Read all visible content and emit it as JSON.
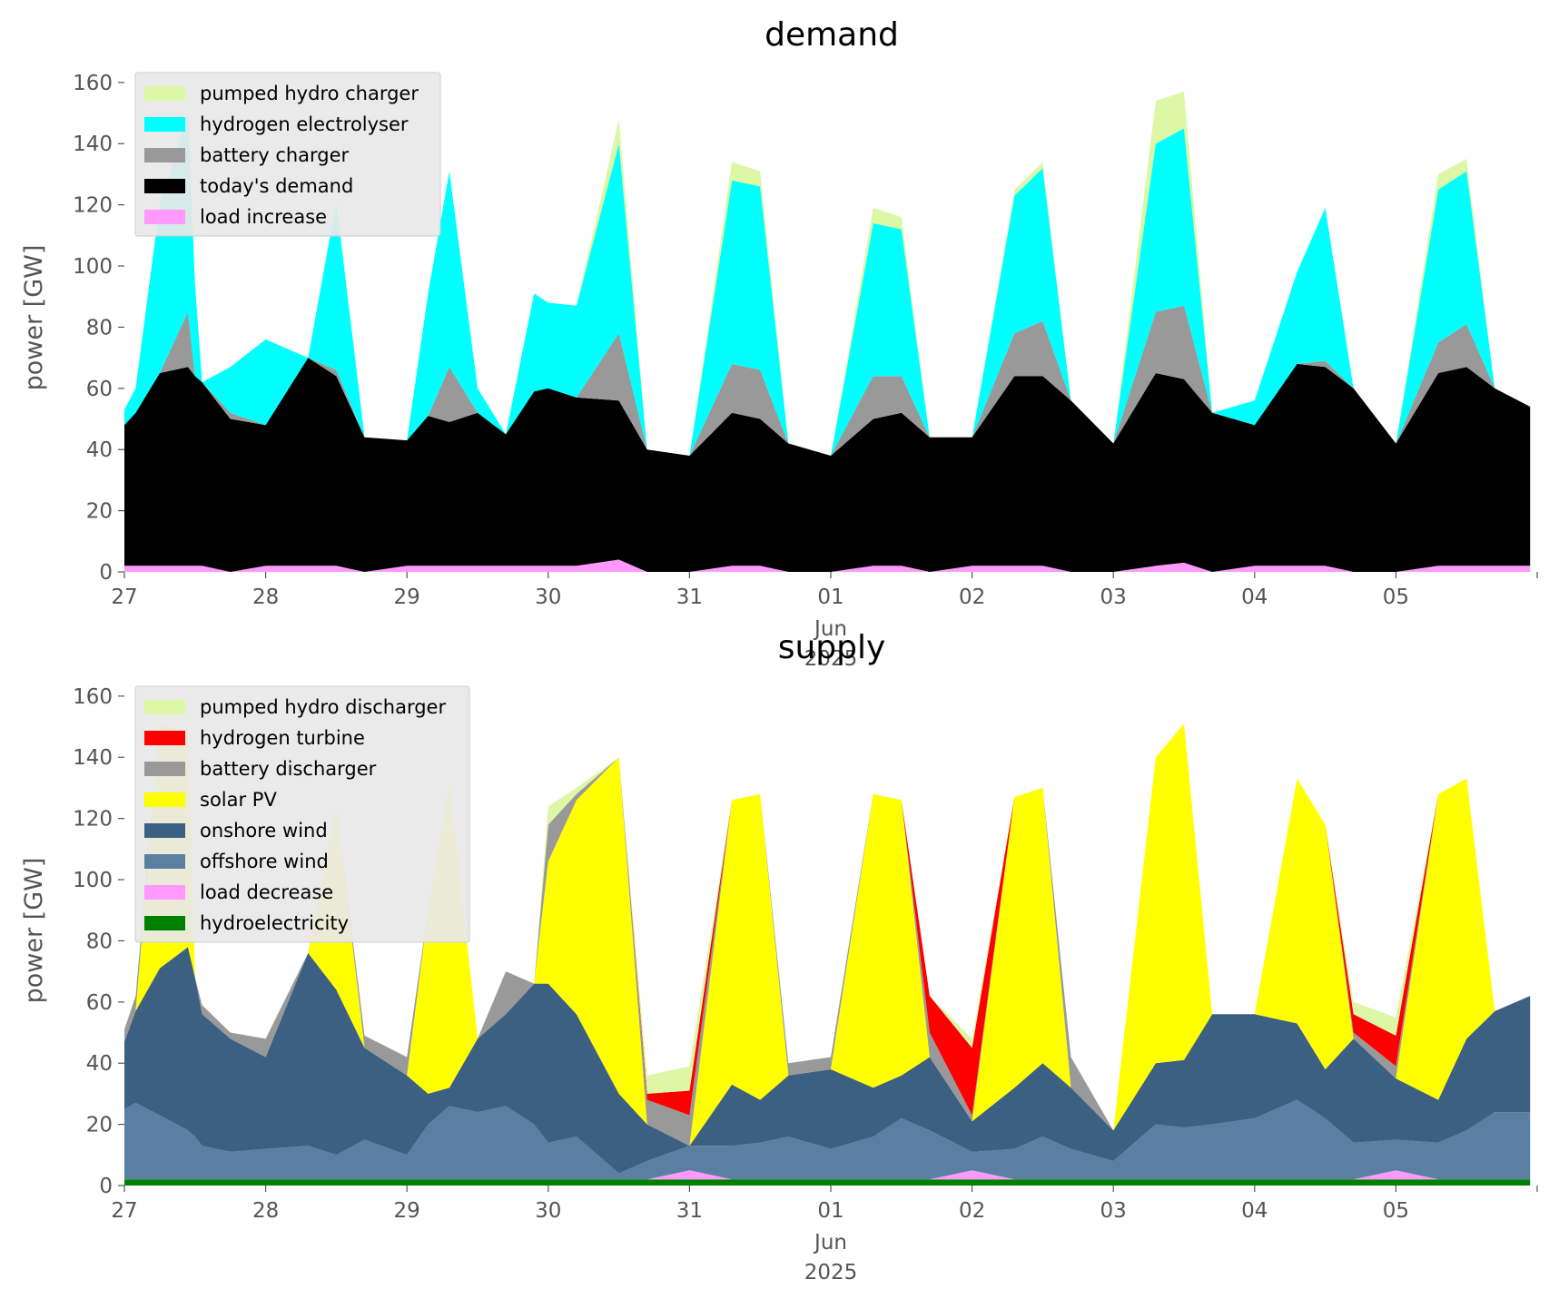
{
  "chart_data": [
    {
      "type": "area",
      "title": "demand",
      "ylabel": "power [GW]",
      "xlabel": "",
      "ylim": [
        0,
        165
      ],
      "yticks": [
        0,
        20,
        40,
        60,
        80,
        100,
        120,
        140,
        160
      ],
      "x_tick_labels": [
        "27",
        "28",
        "29",
        "30",
        "31",
        "01",
        "02",
        "03",
        "04",
        "05"
      ],
      "x_secondary_label": [
        "Jun",
        "2025"
      ],
      "grid": false,
      "legend_position": "top-left",
      "x": [
        0,
        0.08,
        0.25,
        0.45,
        0.5,
        0.55,
        0.75,
        1.0,
        1.3,
        1.5,
        1.7,
        2.0,
        2.15,
        2.3,
        2.5,
        2.7,
        2.9,
        3.0,
        3.2,
        3.5,
        3.7,
        4.0,
        4.3,
        4.5,
        4.7,
        5.0,
        5.3,
        5.5,
        5.7,
        6.0,
        6.3,
        6.5,
        6.7,
        7.0,
        7.3,
        7.5,
        7.7,
        8.0,
        8.3,
        8.5,
        8.7,
        9.0,
        9.3,
        9.5,
        9.7,
        9.95
      ],
      "series": [
        {
          "name": "load increase",
          "color": "#ff99ff",
          "values": [
            2,
            2,
            2,
            2,
            2,
            2,
            0,
            2,
            2,
            2,
            0,
            2,
            2,
            2,
            2,
            2,
            2,
            2,
            2,
            4,
            0,
            0,
            2,
            2,
            0,
            0,
            2,
            2,
            0,
            2,
            2,
            2,
            0,
            0,
            2,
            3,
            0,
            2,
            2,
            2,
            0,
            0,
            2,
            2,
            2,
            2
          ]
        },
        {
          "name": "today's demand",
          "color": "#000000",
          "values": [
            46,
            50,
            63,
            65,
            62,
            60,
            50,
            46,
            68,
            62,
            44,
            41,
            49,
            47,
            50,
            43,
            57,
            58,
            55,
            52,
            40,
            38,
            50,
            48,
            42,
            38,
            48,
            50,
            44,
            42,
            62,
            62,
            56,
            42,
            63,
            60,
            52,
            46,
            66,
            65,
            60,
            42,
            63,
            65,
            58,
            52
          ]
        },
        {
          "name": "battery charger",
          "color": "#999999",
          "values": [
            0,
            0,
            0,
            18,
            0,
            0,
            2,
            0,
            0,
            2,
            0,
            0,
            0,
            18,
            0,
            0,
            0,
            0,
            0,
            22,
            0,
            0,
            16,
            16,
            0,
            0,
            14,
            12,
            0,
            0,
            14,
            18,
            0,
            0,
            20,
            24,
            0,
            0,
            0,
            2,
            0,
            0,
            10,
            14,
            0,
            0
          ]
        },
        {
          "name": "hydrogen electrolyser",
          "color": "#00ffff",
          "values": [
            5,
            8,
            55,
            65,
            30,
            0,
            15,
            28,
            0,
            55,
            0,
            0,
            40,
            64,
            8,
            0,
            32,
            28,
            30,
            62,
            0,
            0,
            60,
            60,
            0,
            0,
            50,
            48,
            0,
            0,
            45,
            50,
            0,
            0,
            55,
            58,
            0,
            8,
            30,
            50,
            0,
            0,
            50,
            50,
            0,
            0
          ]
        },
        {
          "name": "pumped hydro charger",
          "color": "#dcf8a6",
          "values": [
            0,
            0,
            0,
            0,
            0,
            0,
            0,
            0,
            0,
            0,
            0,
            0,
            0,
            0,
            0,
            0,
            0,
            0,
            0,
            8,
            0,
            0,
            6,
            5,
            0,
            0,
            5,
            4,
            0,
            0,
            2,
            2,
            0,
            0,
            14,
            12,
            0,
            0,
            0,
            0,
            0,
            0,
            5,
            4,
            0,
            0
          ]
        }
      ],
      "legend_order": [
        "pumped hydro charger",
        "hydrogen electrolyser",
        "battery charger",
        "today's demand",
        "load increase"
      ]
    },
    {
      "type": "area",
      "title": "supply",
      "ylabel": "power [GW]",
      "xlabel": "",
      "ylim": [
        0,
        165
      ],
      "yticks": [
        0,
        20,
        40,
        60,
        80,
        100,
        120,
        140,
        160
      ],
      "x_tick_labels": [
        "27",
        "28",
        "29",
        "30",
        "31",
        "01",
        "02",
        "03",
        "04",
        "05"
      ],
      "x_secondary_label": [
        "Jun",
        "2025"
      ],
      "grid": false,
      "legend_position": "top-left",
      "x": [
        0,
        0.08,
        0.25,
        0.45,
        0.5,
        0.55,
        0.75,
        1.0,
        1.3,
        1.5,
        1.7,
        2.0,
        2.15,
        2.3,
        2.5,
        2.7,
        2.9,
        3.0,
        3.2,
        3.5,
        3.7,
        4.0,
        4.3,
        4.5,
        4.7,
        5.0,
        5.3,
        5.5,
        5.7,
        6.0,
        6.3,
        6.5,
        6.7,
        7.0,
        7.3,
        7.5,
        7.7,
        8.0,
        8.3,
        8.5,
        8.7,
        9.0,
        9.3,
        9.5,
        9.7,
        9.95
      ],
      "series": [
        {
          "name": "hydroelectricity",
          "color": "#008000",
          "values": [
            2,
            2,
            2,
            2,
            2,
            2,
            2,
            2,
            2,
            2,
            2,
            2,
            2,
            2,
            2,
            2,
            2,
            2,
            2,
            2,
            2,
            2,
            2,
            2,
            2,
            2,
            2,
            2,
            2,
            2,
            2,
            2,
            2,
            2,
            2,
            2,
            2,
            2,
            2,
            2,
            2,
            2,
            2,
            2,
            2,
            2
          ]
        },
        {
          "name": "load decrease",
          "color": "#ff99ff",
          "values": [
            0,
            0,
            0,
            0,
            0,
            0,
            0,
            0,
            0,
            0,
            0,
            0,
            0,
            0,
            0,
            0,
            0,
            0,
            0,
            0,
            0,
            3,
            0,
            0,
            0,
            0,
            0,
            0,
            0,
            3,
            0,
            0,
            0,
            0,
            0,
            0,
            0,
            0,
            0,
            0,
            0,
            3,
            0,
            0,
            0,
            0
          ]
        },
        {
          "name": "offshore wind",
          "color": "#5b7fa3",
          "values": [
            23,
            25,
            21,
            16,
            14,
            11,
            9,
            10,
            11,
            8,
            13,
            8,
            18,
            24,
            22,
            24,
            18,
            12,
            14,
            2,
            6,
            8,
            11,
            12,
            14,
            10,
            14,
            20,
            16,
            6,
            10,
            14,
            10,
            6,
            18,
            17,
            18,
            20,
            26,
            20,
            12,
            10,
            12,
            16,
            22,
            22
          ]
        },
        {
          "name": "onshore wind",
          "color": "#3b6081",
          "values": [
            22,
            30,
            48,
            60,
            52,
            43,
            37,
            30,
            63,
            54,
            30,
            26,
            10,
            6,
            24,
            30,
            46,
            52,
            40,
            26,
            12,
            0,
            20,
            14,
            20,
            26,
            16,
            14,
            24,
            10,
            20,
            24,
            20,
            10,
            20,
            22,
            36,
            34,
            25,
            16,
            34,
            20,
            14,
            30,
            33,
            38
          ]
        },
        {
          "name": "solar PV",
          "color": "#ffff00",
          "values": [
            0,
            0,
            80,
            70,
            0,
            0,
            0,
            0,
            0,
            60,
            0,
            0,
            60,
            100,
            0,
            0,
            0,
            40,
            70,
            110,
            0,
            0,
            93,
            100,
            0,
            0,
            96,
            90,
            0,
            0,
            95,
            90,
            0,
            0,
            100,
            110,
            0,
            0,
            80,
            80,
            0,
            0,
            100,
            85,
            0,
            0
          ]
        },
        {
          "name": "battery discharger",
          "color": "#999999",
          "values": [
            4,
            5,
            0,
            0,
            0,
            3,
            2,
            6,
            0,
            0,
            4,
            6,
            0,
            0,
            0,
            14,
            0,
            12,
            2,
            0,
            8,
            10,
            0,
            0,
            4,
            4,
            0,
            0,
            8,
            2,
            0,
            0,
            10,
            0,
            0,
            0,
            0,
            0,
            0,
            0,
            2,
            4,
            0,
            0,
            0,
            0
          ]
        },
        {
          "name": "hydrogen turbine",
          "color": "#ff0000",
          "values": [
            0,
            0,
            0,
            0,
            0,
            0,
            0,
            0,
            0,
            0,
            0,
            0,
            0,
            0,
            0,
            0,
            0,
            0,
            0,
            0,
            2,
            8,
            0,
            0,
            0,
            0,
            0,
            0,
            12,
            22,
            0,
            0,
            0,
            0,
            0,
            0,
            0,
            0,
            0,
            0,
            6,
            10,
            0,
            0,
            0,
            0
          ]
        },
        {
          "name": "pumped hydro discharger",
          "color": "#dcf8a6",
          "values": [
            0,
            0,
            0,
            0,
            0,
            0,
            0,
            0,
            0,
            0,
            0,
            0,
            0,
            0,
            0,
            0,
            0,
            6,
            2,
            0,
            6,
            8,
            0,
            0,
            0,
            0,
            0,
            0,
            0,
            3,
            0,
            0,
            0,
            0,
            0,
            0,
            0,
            0,
            0,
            0,
            4,
            6,
            0,
            0,
            0,
            0
          ]
        }
      ],
      "legend_order": [
        "pumped hydro discharger",
        "hydrogen turbine",
        "battery discharger",
        "solar PV",
        "onshore wind",
        "offshore wind",
        "load decrease",
        "hydroelectricity"
      ]
    }
  ]
}
